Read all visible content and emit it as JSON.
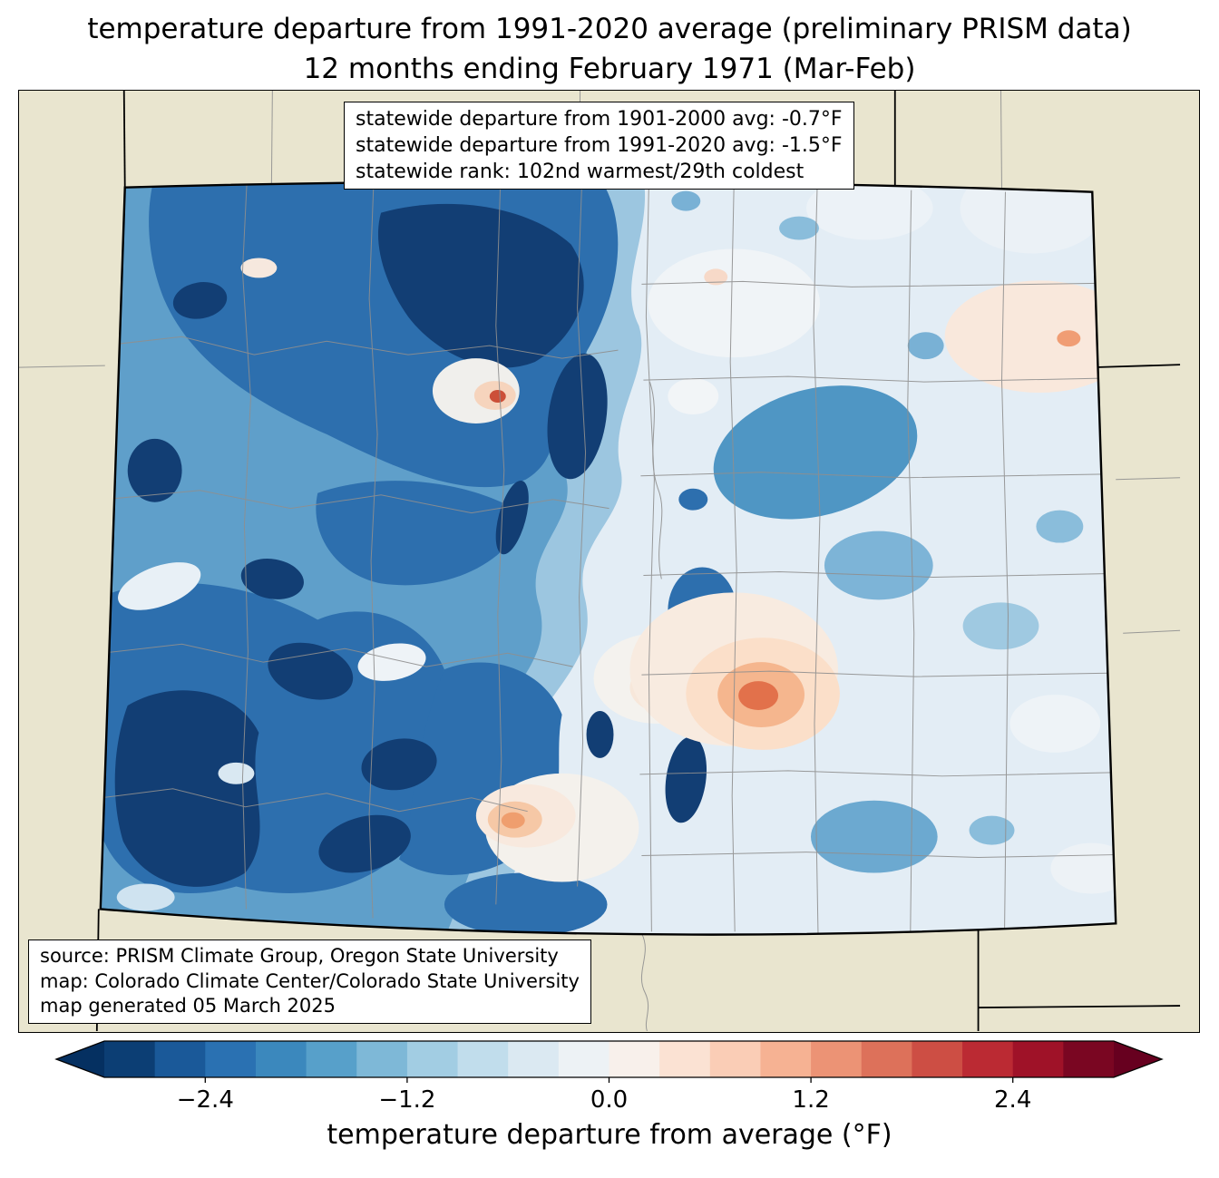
{
  "title": {
    "line1": "temperature departure from 1991-2020 average (preliminary PRISM data)",
    "line2": "12 months ending February 1971 (Mar-Feb)"
  },
  "stats": {
    "lines": [
      "statewide departure from 1901-2000 avg: -0.7°F",
      "statewide departure from 1991-2020 avg: -1.5°F",
      "statewide rank: 102nd warmest/29th coldest"
    ]
  },
  "source": {
    "lines": [
      "source: PRISM Climate Group, Oregon State University",
      "map: Colorado Climate Center/Colorado State University",
      "map generated 05 March 2025"
    ]
  },
  "colorbar": {
    "label": "temperature departure from average (°F)",
    "tick_labels": [
      "−2.4",
      "−1.2",
      "0.0",
      "1.2",
      "2.4"
    ],
    "tick_values": [
      -2.4,
      -1.2,
      0.0,
      1.2,
      2.4
    ],
    "range": [
      -3.0,
      3.0
    ],
    "segment_step": 0.3,
    "colors": [
      "#0c3e74",
      "#1a5999",
      "#2a71b2",
      "#3b88bd",
      "#57a0ca",
      "#7eb8d7",
      "#a2cde3",
      "#c1ddec",
      "#dbe9f2",
      "#edf2f5",
      "#f8f0eb",
      "#fbe2d3",
      "#facdb6",
      "#f6b293",
      "#ec9375",
      "#dd715a",
      "#cd4e44",
      "#bb2a33",
      "#9f1228",
      "#7a0622"
    ],
    "under_color": "#053061",
    "over_color": "#67001f"
  },
  "map": {
    "background_color": "#e9e5cf",
    "state_border_color": "#000000",
    "county_line_color": "#8f8f8f",
    "base_fill_color": "#e3edf5"
  }
}
